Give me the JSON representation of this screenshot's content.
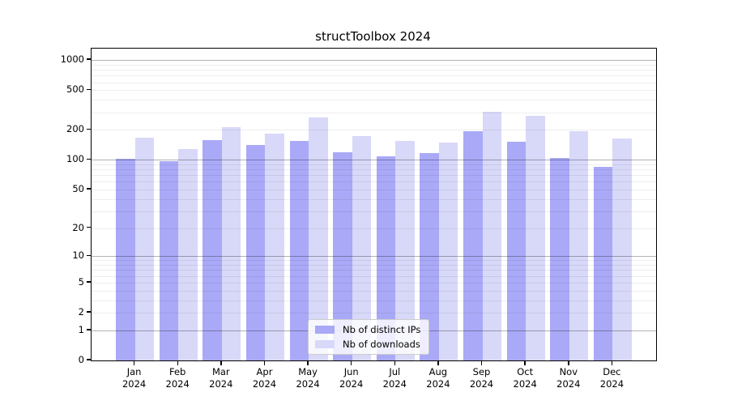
{
  "chart_data": {
    "type": "bar",
    "title": "structToolbox 2024",
    "categories": [
      "Jan",
      "Feb",
      "Mar",
      "Apr",
      "May",
      "Jun",
      "Jul",
      "Aug",
      "Sep",
      "Oct",
      "Nov",
      "Dec"
    ],
    "category_year": "2024",
    "series": [
      {
        "name": "Nb of distinct IPs",
        "color": "#a9a9f7",
        "values": [
          103,
          97,
          158,
          140,
          155,
          120,
          108,
          117,
          195,
          152,
          104,
          85
        ]
      },
      {
        "name": "Nb of downloads",
        "color": "#d8d8f8",
        "values": [
          166,
          129,
          213,
          184,
          268,
          174,
          155,
          150,
          305,
          277,
          192,
          165
        ]
      }
    ],
    "yscale": "log1p",
    "yticks": [
      0,
      1,
      2,
      5,
      10,
      20,
      50,
      100,
      200,
      500,
      1000
    ],
    "ylim": [
      0,
      1300
    ],
    "grid": true,
    "legend_position": "lower center",
    "axis_color": "#000000",
    "major_grid_color": "#b3b3b3",
    "minor_grid_color": "#ededed"
  }
}
